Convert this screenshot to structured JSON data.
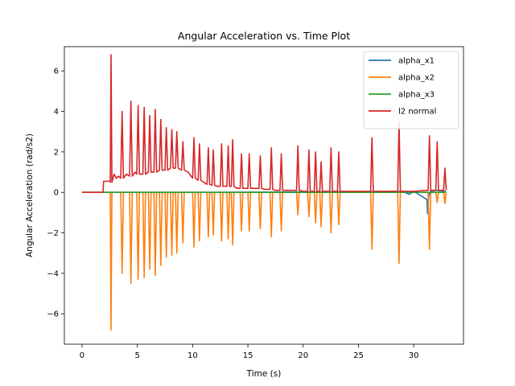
{
  "chart_data": {
    "type": "line",
    "title": "Angular Acceleration vs. Time Plot",
    "xlabel": "Time (s)",
    "ylabel": "Angular Acceleration (rad/s2)",
    "xlim": [
      -1.6,
      34.5
    ],
    "ylim": [
      -7.5,
      7.2
    ],
    "xticks": [
      0,
      5,
      10,
      15,
      20,
      25,
      30
    ],
    "yticks": [
      -6,
      -4,
      -2,
      0,
      2,
      4,
      6
    ],
    "grid": false,
    "legend_position": "top-right",
    "series": [
      {
        "name": "alpha_x1",
        "color": "#1f77b4",
        "x": [
          0,
          2.0,
          10,
          20,
          29.0,
          29.6,
          30,
          31.2,
          31.25,
          31.35,
          31.5,
          32.0,
          32.9
        ],
        "y": [
          0,
          0,
          0,
          0.02,
          0.05,
          -0.1,
          0.05,
          -0.35,
          -1.05,
          -0.2,
          0.05,
          0.1,
          0.05
        ]
      },
      {
        "name": "alpha_x2",
        "color": "#ff7f0e",
        "x": [
          0,
          2.0,
          2.55,
          2.62,
          2.7,
          3.5,
          3.62,
          3.74,
          4.3,
          4.42,
          4.54,
          4.95,
          5.07,
          5.19,
          5.5,
          5.62,
          5.74,
          6.0,
          6.12,
          6.24,
          6.5,
          6.62,
          6.74,
          7.0,
          7.12,
          7.24,
          7.5,
          7.62,
          7.74,
          8.0,
          8.12,
          8.24,
          8.45,
          8.57,
          8.69,
          9.0,
          9.12,
          9.24,
          10.0,
          10.12,
          10.24,
          10.5,
          10.62,
          10.74,
          11.3,
          11.42,
          11.54,
          11.75,
          11.87,
          11.99,
          12.5,
          12.62,
          12.74,
          13.1,
          13.22,
          13.34,
          13.5,
          13.62,
          13.74,
          14.3,
          14.42,
          14.54,
          15.0,
          15.12,
          15.24,
          16.0,
          16.12,
          16.24,
          17.0,
          17.12,
          17.24,
          17.9,
          18.02,
          18.14,
          19.4,
          19.52,
          19.64,
          20.4,
          20.52,
          20.64,
          21.0,
          21.12,
          21.24,
          21.5,
          21.62,
          21.74,
          22.4,
          22.52,
          22.64,
          23.1,
          23.22,
          23.34,
          26.1,
          26.22,
          26.34,
          28.55,
          28.67,
          28.79,
          31.3,
          31.42,
          31.54,
          32.0,
          32.12,
          32.24,
          32.7,
          32.82,
          32.94
        ],
        "y": [
          0,
          0,
          0,
          -6.8,
          0,
          0,
          -4.0,
          0,
          0,
          -4.5,
          0,
          0,
          -4.3,
          0,
          0,
          -4.2,
          0,
          0,
          -3.8,
          0,
          0,
          -4.1,
          0,
          0,
          -3.6,
          0,
          0,
          -3.2,
          0,
          0,
          -3.1,
          0,
          0,
          -3.0,
          0,
          0,
          -2.5,
          0,
          0,
          -2.7,
          0,
          0,
          -2.4,
          0,
          0,
          -2.2,
          0,
          0,
          -2.1,
          0,
          0,
          -2.4,
          0,
          0,
          -2.3,
          0,
          0,
          -2.6,
          0,
          0,
          -1.9,
          0,
          0,
          -1.9,
          0,
          0,
          -1.8,
          0,
          0,
          -2.2,
          0,
          0,
          -1.9,
          0,
          0,
          -1.1,
          0,
          0,
          -1.2,
          0,
          0,
          -1.5,
          0,
          0,
          -1.7,
          0,
          0,
          -2.0,
          0,
          0,
          -1.6,
          0,
          0,
          -2.8,
          0,
          0,
          -3.5,
          0,
          0,
          -2.8,
          0,
          0,
          -0.5,
          0,
          0,
          -0.55,
          0
        ]
      },
      {
        "name": "alpha_x3",
        "color": "#2ca02c",
        "x": [
          0,
          5,
          10,
          15,
          20,
          25,
          30,
          32.9
        ],
        "y": [
          0,
          0,
          0,
          0,
          0,
          0,
          0,
          0
        ]
      },
      {
        "name": "l2 normal",
        "color": "#d62728",
        "x": [
          0,
          1.9,
          1.95,
          2.5,
          2.55,
          2.62,
          2.7,
          2.9,
          3.1,
          3.3,
          3.5,
          3.62,
          3.74,
          4.0,
          4.3,
          4.42,
          4.54,
          4.8,
          4.95,
          5.07,
          5.19,
          5.5,
          5.62,
          5.74,
          6.0,
          6.12,
          6.24,
          6.5,
          6.62,
          6.74,
          7.0,
          7.12,
          7.24,
          7.5,
          7.62,
          7.74,
          8.0,
          8.12,
          8.24,
          8.45,
          8.57,
          8.69,
          9.0,
          9.12,
          9.24,
          9.6,
          10.0,
          10.12,
          10.24,
          10.5,
          10.62,
          10.74,
          11.0,
          11.3,
          11.42,
          11.54,
          11.75,
          11.87,
          11.99,
          12.2,
          12.5,
          12.62,
          12.74,
          13.1,
          13.22,
          13.34,
          13.5,
          13.62,
          13.74,
          14.0,
          14.3,
          14.42,
          14.54,
          15.0,
          15.12,
          15.24,
          15.5,
          16.0,
          16.12,
          16.24,
          16.5,
          17.0,
          17.12,
          17.24,
          17.5,
          17.9,
          18.02,
          18.14,
          18.5,
          19.4,
          19.52,
          19.64,
          20.0,
          20.4,
          20.52,
          20.64,
          21.0,
          21.12,
          21.24,
          21.5,
          21.62,
          21.74,
          22.0,
          22.4,
          22.52,
          22.64,
          23.1,
          23.22,
          23.34,
          24.0,
          25.0,
          26.1,
          26.22,
          26.34,
          27.0,
          28.55,
          28.67,
          28.79,
          30.0,
          31.2,
          31.3,
          31.42,
          31.54,
          32.0,
          32.12,
          32.24,
          32.7,
          32.82,
          32.94
        ],
        "y": [
          0,
          0,
          0.55,
          0.55,
          0.5,
          6.8,
          0.5,
          0.9,
          0.7,
          0.8,
          0.7,
          4.0,
          0.7,
          0.9,
          0.8,
          4.5,
          0.8,
          1.0,
          0.9,
          4.3,
          0.9,
          0.9,
          4.2,
          0.9,
          1.0,
          3.8,
          1.0,
          1.0,
          4.1,
          1.0,
          1.1,
          3.6,
          1.1,
          1.1,
          3.2,
          1.1,
          1.2,
          3.1,
          1.2,
          1.2,
          3.0,
          1.2,
          1.1,
          2.5,
          1.1,
          1.0,
          0.7,
          2.7,
          0.7,
          0.6,
          2.4,
          0.6,
          0.5,
          0.4,
          2.2,
          0.4,
          0.35,
          2.1,
          0.35,
          0.3,
          0.3,
          2.4,
          0.3,
          0.3,
          2.3,
          0.3,
          0.3,
          2.6,
          0.3,
          0.2,
          0.2,
          1.9,
          0.2,
          0.2,
          1.9,
          0.2,
          0.2,
          0.2,
          1.8,
          0.2,
          0.15,
          0.15,
          2.2,
          0.15,
          0.1,
          0.1,
          1.9,
          0.1,
          0.1,
          0.1,
          2.3,
          0.1,
          0.05,
          0.05,
          2.1,
          0.05,
          0.05,
          2.0,
          0.05,
          0.05,
          1.5,
          0.05,
          0.05,
          0.05,
          2.2,
          0.05,
          0.05,
          2.0,
          0.05,
          0.05,
          0.05,
          0.05,
          2.7,
          0.05,
          0.05,
          0.05,
          3.5,
          0.05,
          0.05,
          0.1,
          0.1,
          2.8,
          0.1,
          0.1,
          2.5,
          0.1,
          0.1,
          1.2,
          0.1
        ]
      }
    ]
  }
}
